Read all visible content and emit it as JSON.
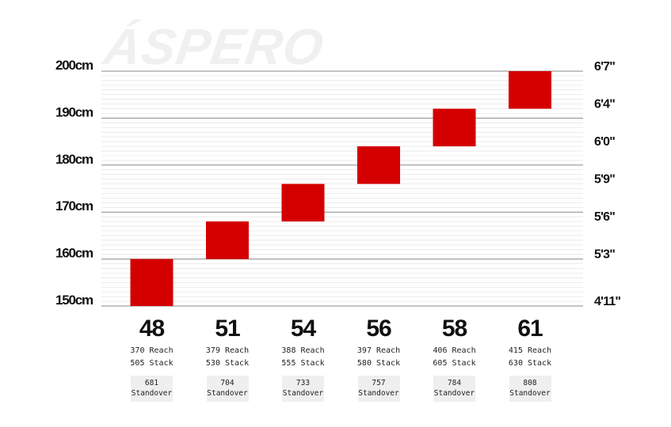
{
  "watermark": "ÁSPERO",
  "colors": {
    "box": "#d40000",
    "minor_grid": "#e2e2e2",
    "major_grid": "#8a8a8a",
    "standover_bg": "#efefef"
  },
  "chart_data": {
    "type": "range-bar",
    "y_left": {
      "unit": "cm",
      "ylim": [
        150,
        200
      ],
      "ticks": [
        150,
        160,
        170,
        180,
        190,
        200
      ],
      "tick_labels": [
        "150cm",
        "160cm",
        "170cm",
        "180cm",
        "190cm",
        "200cm"
      ]
    },
    "y_right": {
      "tick_labels": [
        "4'11\"",
        "5'3\"",
        "5'6\"",
        "5'9\"",
        "6'0\"",
        "6'4\"",
        "6'7\""
      ],
      "tick_values_cm": [
        150,
        160,
        168,
        176,
        184,
        192,
        200
      ]
    },
    "categories": [
      "48",
      "51",
      "54",
      "56",
      "58",
      "61"
    ],
    "height_ranges_cm": [
      [
        150,
        160
      ],
      [
        160,
        168
      ],
      [
        168,
        176
      ],
      [
        176,
        184
      ],
      [
        184,
        192
      ],
      [
        192,
        200
      ]
    ],
    "reach": [
      370,
      379,
      388,
      397,
      406,
      415
    ],
    "stack": [
      505,
      530,
      555,
      580,
      605,
      630
    ],
    "standover": [
      681,
      704,
      733,
      757,
      784,
      808
    ],
    "reach_label": "Reach",
    "stack_label": "Stack",
    "standover_label": "Standover"
  }
}
